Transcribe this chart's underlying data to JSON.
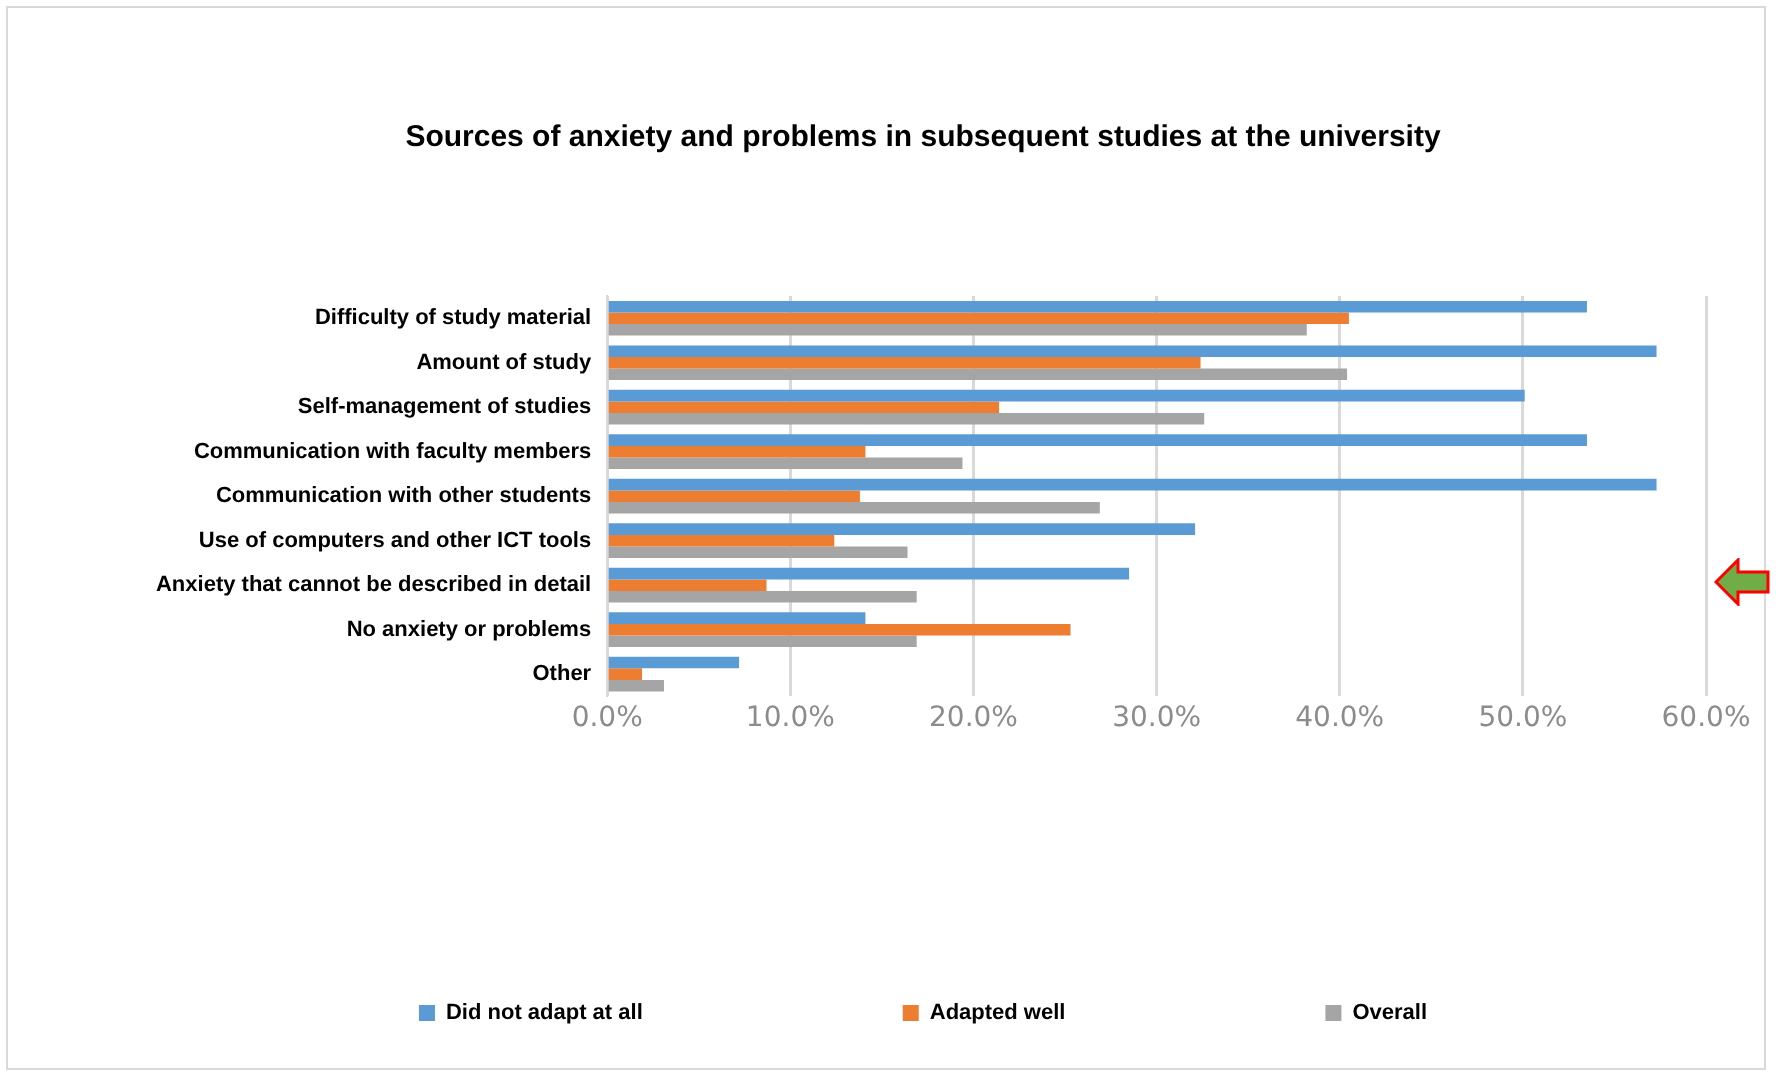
{
  "chart_data": {
    "type": "bar",
    "orientation": "horizontal",
    "title": "Sources of anxiety and problems in subsequent studies at the university",
    "categories": [
      "Difficulty of study material",
      "Amount of study",
      "Self-management of studies",
      "Communication with faculty members",
      "Communication with other students",
      "Use of computers and other ICT tools",
      "Anxiety that cannot be described in detail",
      "No anxiety or problems",
      "Other"
    ],
    "series": [
      {
        "name": "Did not adapt at all",
        "color": "#5b9bd5",
        "values": [
          53.5,
          57.3,
          50.1,
          53.5,
          57.3,
          32.1,
          28.5,
          14.1,
          7.2
        ]
      },
      {
        "name": "Adapted well",
        "color": "#ed7d31",
        "values": [
          40.5,
          32.4,
          21.4,
          14.1,
          13.8,
          12.4,
          8.7,
          25.3,
          1.9
        ]
      },
      {
        "name": "Overall",
        "color": "#a5a5a5",
        "values": [
          38.2,
          40.4,
          32.6,
          19.4,
          26.9,
          16.4,
          16.9,
          16.9,
          3.1
        ]
      }
    ],
    "xlim": [
      0,
      60
    ],
    "xticks": [
      {
        "value": 0,
        "label": "0.0%"
      },
      {
        "value": 10,
        "label": "10.0%"
      },
      {
        "value": 20,
        "label": "20.0%"
      },
      {
        "value": 30,
        "label": "30.0%"
      },
      {
        "value": 40,
        "label": "40.0%"
      },
      {
        "value": 50,
        "label": "50.0%"
      },
      {
        "value": 60,
        "label": "60.0%"
      }
    ],
    "grid": "x",
    "legend": "bottom"
  }
}
